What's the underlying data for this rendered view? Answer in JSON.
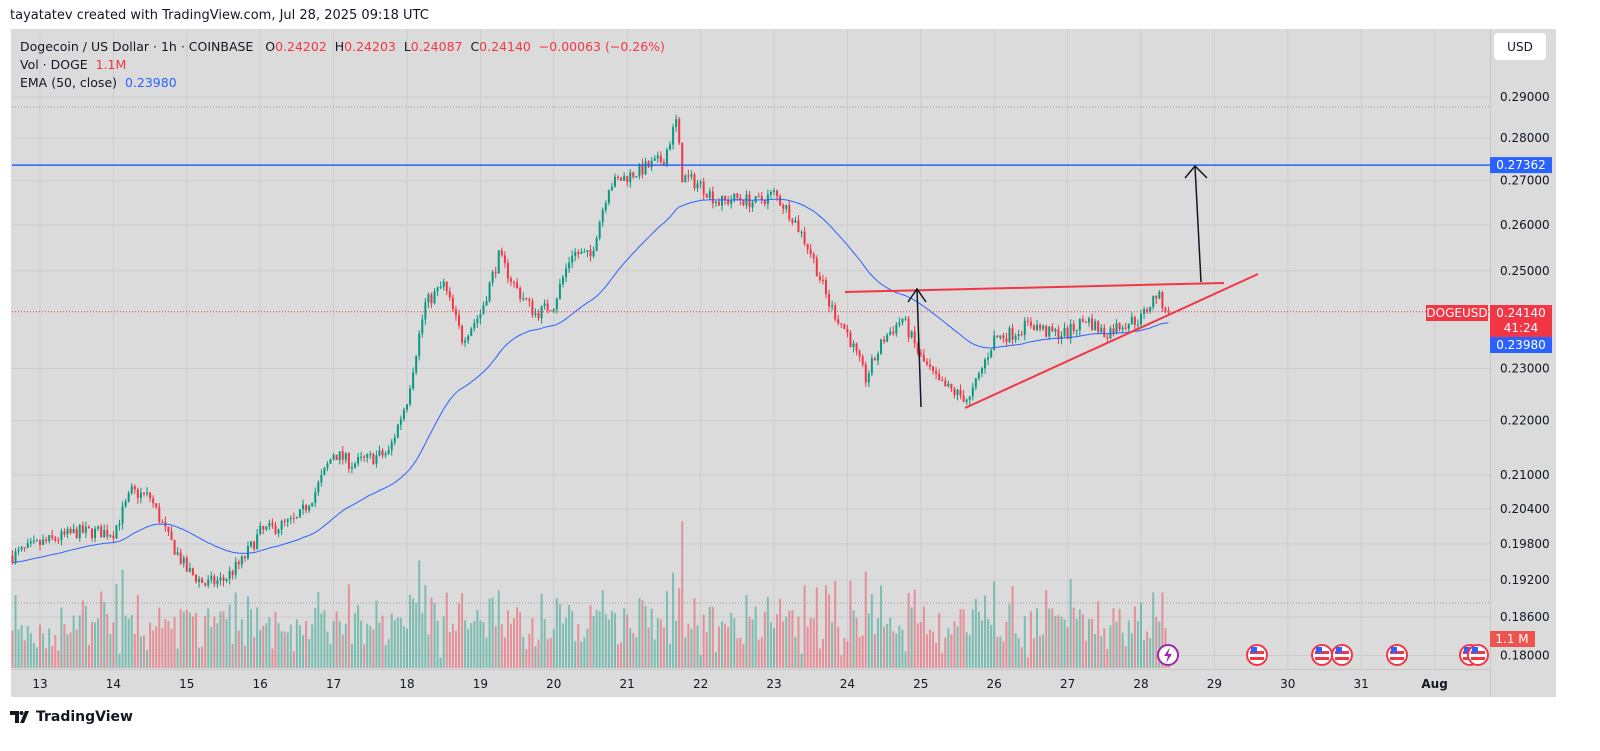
{
  "credit": "tayatatev created with TradingView.com, Jul 28, 2025 09:18 UTC",
  "legend": {
    "symbol": "Dogecoin / US Dollar · 1h · COINBASE",
    "o_label": "O",
    "o": "0.24202",
    "h_label": "H",
    "h": "0.24203",
    "l_label": "L",
    "l": "0.24087",
    "c_label": "C",
    "c": "0.24140",
    "change": "−0.00063 (−0.26%)",
    "vol_label": "Vol · DOGE",
    "vol": "1.1M",
    "ema_label": "EMA (50, close)",
    "ema": "0.23980"
  },
  "currency_button": "USD",
  "footer_logo": "TradingView",
  "colors": {
    "up": "#089981",
    "down": "#f23645",
    "ema": "#2962ff",
    "level": "#2962ff",
    "trendline": "#f23645",
    "background": "#dbdbdb"
  },
  "chart_data": {
    "type": "candlestick",
    "interval": "1h",
    "y_scale": "log",
    "grid": true,
    "x_ticks": [
      "13",
      "14",
      "15",
      "16",
      "17",
      "18",
      "19",
      "20",
      "21",
      "22",
      "23",
      "24",
      "25",
      "26",
      "27",
      "28",
      "29",
      "30",
      "31",
      "Aug"
    ],
    "y_ticks": [
      "0.29000",
      "0.28000",
      "0.27000",
      "0.26000",
      "0.25000",
      "0.23000",
      "0.22000",
      "0.21000",
      "0.20400",
      "0.19800",
      "0.19200",
      "0.18600",
      "0.18000"
    ],
    "price_path": [
      [
        "2025-07-12T15:00",
        0.196
      ],
      [
        "2025-07-13T00:00",
        0.198
      ],
      [
        "2025-07-13T12:00",
        0.2
      ],
      [
        "2025-07-14T00:00",
        0.2
      ],
      [
        "2025-07-14T06:00",
        0.207
      ],
      [
        "2025-07-14T12:00",
        0.206
      ],
      [
        "2025-07-14T18:00",
        0.199
      ],
      [
        "2025-07-15T00:00",
        0.1936
      ],
      [
        "2025-07-15T06:00",
        0.1913
      ],
      [
        "2025-07-15T12:00",
        0.192
      ],
      [
        "2025-07-15T18:00",
        0.195
      ],
      [
        "2025-07-16T00:00",
        0.2
      ],
      [
        "2025-07-16T12:00",
        0.202
      ],
      [
        "2025-07-16T18:00",
        0.207
      ],
      [
        "2025-07-17T00:00",
        0.214
      ],
      [
        "2025-07-17T06:00",
        0.212
      ],
      [
        "2025-07-17T12:00",
        0.213
      ],
      [
        "2025-07-17T18:00",
        0.214
      ],
      [
        "2025-07-18T00:00",
        0.224
      ],
      [
        "2025-07-18T06:00",
        0.243
      ],
      [
        "2025-07-18T12:00",
        0.247
      ],
      [
        "2025-07-18T18:00",
        0.236
      ],
      [
        "2025-07-19T00:00",
        0.241
      ],
      [
        "2025-07-19T06:00",
        0.253
      ],
      [
        "2025-07-19T12:00",
        0.246
      ],
      [
        "2025-07-19T18:00",
        0.241
      ],
      [
        "2025-07-20T00:00",
        0.243
      ],
      [
        "2025-07-20T06:00",
        0.254
      ],
      [
        "2025-07-20T12:00",
        0.253
      ],
      [
        "2025-07-20T18:00",
        0.269
      ],
      [
        "2025-07-21T00:00",
        0.271
      ],
      [
        "2025-07-21T06:00",
        0.273
      ],
      [
        "2025-07-21T12:00",
        0.275
      ],
      [
        "2025-07-21T16:00",
        0.284
      ],
      [
        "2025-07-21T18:00",
        0.271
      ],
      [
        "2025-07-22T00:00",
        0.269
      ],
      [
        "2025-07-22T06:00",
        0.265
      ],
      [
        "2025-07-22T12:00",
        0.266
      ],
      [
        "2025-07-22T18:00",
        0.265
      ],
      [
        "2025-07-23T00:00",
        0.267
      ],
      [
        "2025-07-23T06:00",
        0.262
      ],
      [
        "2025-07-23T12:00",
        0.254
      ],
      [
        "2025-07-23T18:00",
        0.243
      ],
      [
        "2025-07-24T00:00",
        0.237
      ],
      [
        "2025-07-24T06:00",
        0.228
      ],
      [
        "2025-07-24T12:00",
        0.236
      ],
      [
        "2025-07-24T18:00",
        0.24
      ],
      [
        "2025-07-25T00:00",
        0.232
      ],
      [
        "2025-07-25T06:00",
        0.227
      ],
      [
        "2025-07-25T12:00",
        0.225
      ],
      [
        "2025-07-25T16:00",
        0.224
      ],
      [
        "2025-07-25T18:00",
        0.227
      ],
      [
        "2025-07-26T00:00",
        0.236
      ],
      [
        "2025-07-26T06:00",
        0.237
      ],
      [
        "2025-07-26T12:00",
        0.239
      ],
      [
        "2025-07-26T18:00",
        0.237
      ],
      [
        "2025-07-27T00:00",
        0.237
      ],
      [
        "2025-07-27T06:00",
        0.24
      ],
      [
        "2025-07-27T12:00",
        0.237
      ],
      [
        "2025-07-27T18:00",
        0.239
      ],
      [
        "2025-07-28T00:00",
        0.24
      ],
      [
        "2025-07-28T05:00",
        0.245
      ],
      [
        "2025-07-28T09:00",
        0.2414
      ]
    ],
    "horizontal_level": {
      "price": 0.27362,
      "label": "0.27362"
    },
    "last_price": {
      "symbol": "DOGEUSD",
      "price": "0.24140",
      "countdown": "41:24"
    },
    "ema_value": {
      "label": "0.23980",
      "period": 50
    },
    "volume_badge": "1.1 M",
    "events": [
      "lightning-icon",
      "us-flag-icon",
      "us-flag-icon",
      "us-flag-icon",
      "us-flag-icon",
      "us-flag-icon",
      "us-flag-icon"
    ]
  }
}
